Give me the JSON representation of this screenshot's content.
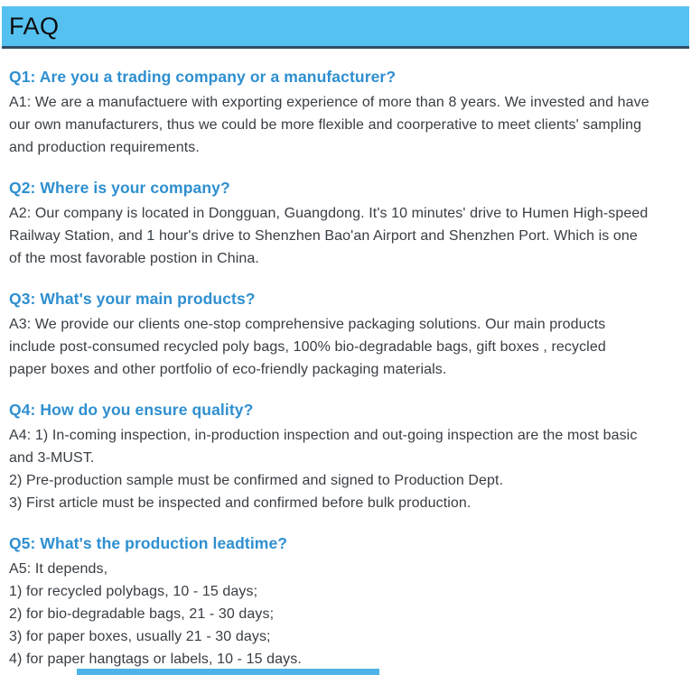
{
  "header": {
    "title": "FAQ"
  },
  "colors": {
    "header_bg": "#55c1f0",
    "header_border": "#2f4d63",
    "question": "#2e8fd0",
    "body_text": "#383d43",
    "bottom_bar": "#4db3e8"
  },
  "faqs": [
    {
      "question": "Q1: Are you a trading company or a manufacturer?",
      "answer_lines": [
        "A1: We are a manufactuere with exporting experience of more than 8 years. We invested and have",
        "our own manufacturers, thus we could be more flexible and coorperative to meet clients' sampling",
        "and production requirements."
      ]
    },
    {
      "question": "Q2: Where is your company?",
      "answer_lines": [
        "A2: Our company is located in Dongguan, Guangdong. It's 10 minutes' drive to Humen High-speed",
        "Railway Station, and 1 hour's drive to Shenzhen Bao'an Airport and Shenzhen Port. Which is one",
        "of the most favorable postion in China."
      ]
    },
    {
      "question": "Q3: What's your main products?",
      "answer_lines": [
        "A3: We provide our clients one-stop comprehensive packaging solutions. Our main products",
        "include post-consumed recycled poly bags, 100% bio-degradable bags, gift boxes , recycled",
        "paper boxes and other portfolio of eco-friendly packaging materials."
      ]
    },
    {
      "question": "Q4: How do you ensure quality?",
      "answer_lines": [
        "A4: 1) In-coming inspection, in-production inspection and out-going inspection are the most basic",
        "and 3-MUST.",
        "2) Pre-production sample must be confirmed and signed to Production Dept.",
        "3) First article must be inspected and confirmed before bulk production."
      ]
    },
    {
      "question": "Q5: What's the production leadtime?",
      "answer_lines": [
        "A5: It depends,",
        "1) for recycled polybags, 10 - 15 days;",
        "2) for bio-degradable bags, 21 - 30 days;",
        "3) for paper boxes, usually 21 - 30 days;",
        "4) for paper hangtags or labels, 10 - 15 days."
      ]
    }
  ]
}
